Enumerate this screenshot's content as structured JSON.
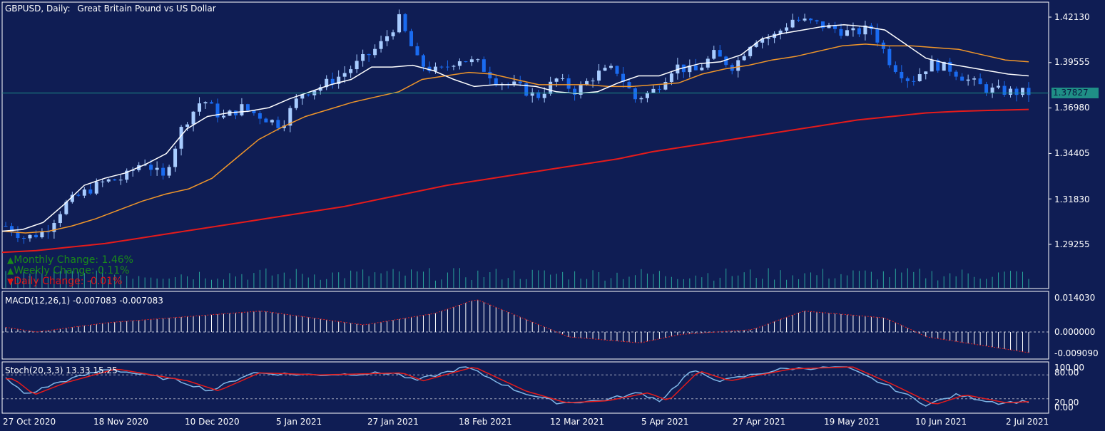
{
  "header": {
    "symbol": "GBPUSD, Daily:",
    "description": "Great Britain Pound vs US Dollar"
  },
  "changes": {
    "monthly": "Monthly Change: 1.46%",
    "weekly": "Weekly Change: 0.11%",
    "daily": "Daily Change: -0.01%",
    "monthly_arrow": "▲",
    "weekly_arrow": "▲",
    "daily_arrow": "▼"
  },
  "current_price": "1.37827",
  "price_axis_labels": [
    "1.42130",
    "1.39555",
    "1.36980",
    "1.34405",
    "1.31830",
    "1.29255"
  ],
  "macd": {
    "label": "MACD(12,26,1) -0.007083 -0.007083",
    "axis_labels": [
      "0.014030",
      "0.000000",
      "-0.009090"
    ]
  },
  "stoch": {
    "label": "Stoch(20,3,3) 13.33 15.25",
    "axis_labels": [
      "100.00",
      "80.00",
      "20.00",
      "0.00"
    ]
  },
  "date_labels": [
    "27 Oct 2020",
    "18 Nov 2020",
    "10 Dec 2020",
    "5 Jan 2021",
    "27 Jan 2021",
    "18 Feb 2021",
    "12 Mar 2021",
    "5 Apr 2021",
    "27 Apr 2021",
    "19 May 2021",
    "10 Jun 2021",
    "2 Jul 2021"
  ],
  "colors": {
    "background": "#0f1d54",
    "frame": "#ffffff",
    "bull_candle": "#a8ccff",
    "bear_candle": "#1a6bf0",
    "ma_fast": "#ffffff",
    "ma_mid": "#f0962a",
    "ma_slow": "#e51b1b",
    "volume": "#29a39a",
    "macd_hist": "#ffffff",
    "macd_signal": "#e02020",
    "stoch_main": "#7fb6e6",
    "stoch_signal": "#e51b1b",
    "price_line": "#1f8f86"
  },
  "chart_data": [
    {
      "type": "candlestick",
      "title": "GBPUSD, Daily: Great Britain Pound vs US Dollar",
      "x_range": [
        "27 Oct 2020",
        "2 Jul 2021"
      ],
      "ylim": [
        1.281,
        1.431
      ],
      "y_ticks": [
        1.4213,
        1.39555,
        1.3698,
        1.34405,
        1.3183,
        1.29255
      ],
      "last_price": 1.37827,
      "series": [
        {
          "values": [
            1.303,
            1.296,
            1.3,
            1.315,
            1.322,
            1.328,
            1.33,
            1.34,
            1.33,
            1.36,
            1.375,
            1.364,
            1.37,
            1.365,
            1.36,
            1.378,
            1.382,
            1.388,
            1.396,
            1.405,
            1.42,
            1.395,
            1.39,
            1.398,
            1.395,
            1.385,
            1.382,
            1.376,
            1.386,
            1.379,
            1.389,
            1.392,
            1.375,
            1.38,
            1.394,
            1.39,
            1.4,
            1.393,
            1.409,
            1.41,
            1.42,
            1.418,
            1.415,
            1.412,
            1.415,
            1.395,
            1.385,
            1.395,
            1.392,
            1.385,
            1.38,
            1.379,
            1.3783
          ]
        },
        {
          "values": [
            1.3,
            1.301,
            1.305,
            1.315,
            1.326,
            1.33,
            1.333,
            1.338,
            1.344,
            1.358,
            1.365,
            1.367,
            1.368,
            1.37,
            1.375,
            1.379,
            1.383,
            1.386,
            1.393,
            1.393,
            1.394,
            1.391,
            1.386,
            1.382,
            1.383,
            1.383,
            1.382,
            1.379,
            1.378,
            1.379,
            1.384,
            1.388,
            1.388,
            1.392,
            1.395,
            1.396,
            1.4,
            1.409,
            1.412,
            1.414,
            1.416,
            1.417,
            1.416,
            1.414,
            1.406,
            1.398,
            1.395,
            1.393,
            1.391,
            1.389,
            1.388
          ]
        },
        {
          "values": [
            1.3,
            1.299,
            1.3,
            1.303,
            1.307,
            1.312,
            1.317,
            1.321,
            1.324,
            1.33,
            1.341,
            1.352,
            1.359,
            1.365,
            1.369,
            1.373,
            1.376,
            1.379,
            1.386,
            1.388,
            1.39,
            1.389,
            1.386,
            1.383,
            1.383,
            1.383,
            1.382,
            1.382,
            1.383,
            1.384,
            1.389,
            1.392,
            1.394,
            1.397,
            1.399,
            1.402,
            1.405,
            1.406,
            1.405,
            1.405,
            1.404,
            1.403,
            1.4,
            1.397,
            1.396
          ]
        },
        {
          "values": [
            1.288,
            1.289,
            1.291,
            1.293,
            1.296,
            1.299,
            1.302,
            1.305,
            1.308,
            1.311,
            1.314,
            1.318,
            1.322,
            1.326,
            1.329,
            1.332,
            1.335,
            1.338,
            1.341,
            1.345,
            1.348,
            1.351,
            1.354,
            1.357,
            1.36,
            1.363,
            1.365,
            1.367,
            1.368,
            1.3685,
            1.369
          ]
        }
      ]
    },
    {
      "type": "bar",
      "title": "MACD(12,26,1) -0.007083 -0.007083",
      "ylim": [
        -0.00909,
        0.01403
      ],
      "y_ticks": [
        0.01403,
        0.0,
        -0.00909
      ]
    },
    {
      "type": "line",
      "title": "Stoch(20,3,3) 13.33 15.25",
      "ylim": [
        0,
        100
      ],
      "y_ticks": [
        100.0,
        80.0,
        20.0,
        0.0
      ],
      "last_values": [
        13.33,
        15.25
      ]
    }
  ]
}
